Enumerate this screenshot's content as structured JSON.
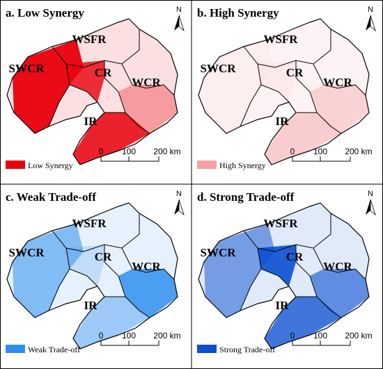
{
  "panels": [
    {
      "title": "a. Low Synergy",
      "legend": "Low Synergy",
      "color": "#e8000b",
      "north": "N",
      "regions": [
        "WSFR",
        "SWCR",
        "CR",
        "WCR",
        "IR"
      ],
      "scale": [
        "0",
        "100",
        "200 km"
      ]
    },
    {
      "title": "b. High Synergy",
      "legend": "High Synergy",
      "color": "#f4a0a4",
      "north": "N",
      "regions": [
        "WSFR",
        "SWCR",
        "CR",
        "WCR",
        "IR"
      ],
      "scale": [
        "0",
        "100",
        "200 km"
      ]
    },
    {
      "title": "c. Weak Trade-off",
      "legend": "Weak Trade-off",
      "color": "#2f8fef",
      "north": "N",
      "regions": [
        "WSFR",
        "SWCR",
        "CR",
        "WCR",
        "IR"
      ],
      "scale": [
        "0",
        "100",
        "200 km"
      ]
    },
    {
      "title": "d. Strong Trade-off",
      "legend": "Strong Trade-off",
      "color": "#0a4fd0",
      "north": "N",
      "regions": [
        "WSFR",
        "SWCR",
        "CR",
        "WCR",
        "IR"
      ],
      "scale": [
        "0",
        "100",
        "200 km"
      ]
    }
  ]
}
